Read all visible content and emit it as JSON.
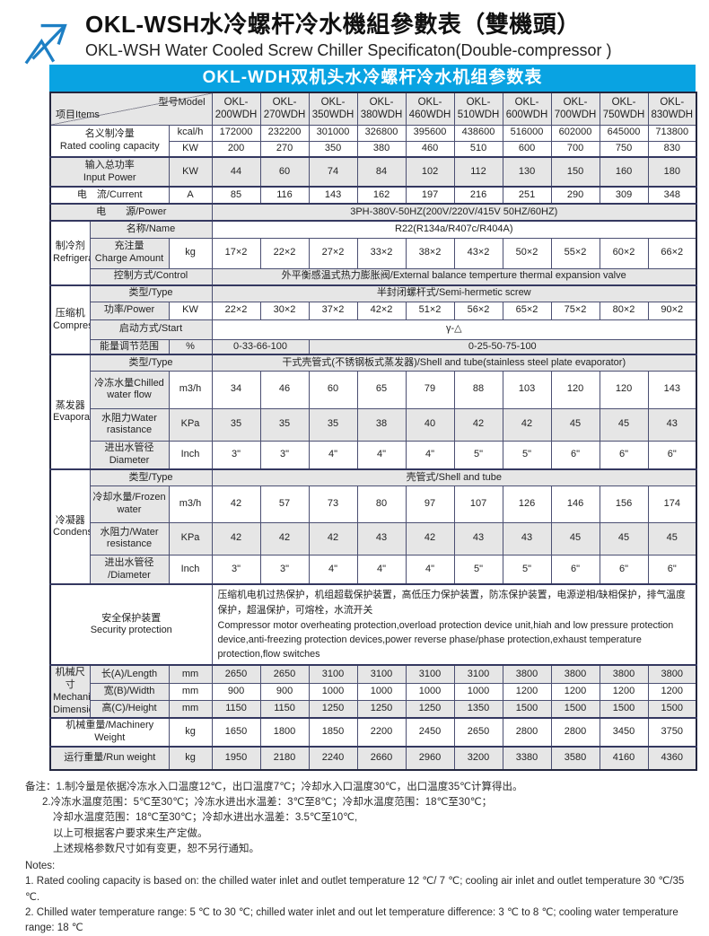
{
  "header": {
    "title_cn": "OKL-WSH水冷螺杆冷水機組參數表（雙機頭）",
    "title_en": "OKL-WSH Water Cooled Screw Chiller Specificaton(Double-compressor )"
  },
  "banner": {
    "text": "OKL-WDH双机头水冷螺杆冷水机组参数表",
    "bg_color": "#09a3e2"
  },
  "table": {
    "corner": {
      "items": "项目Items",
      "model": "型号Model"
    },
    "models": [
      "OKL-\n200WDH",
      "OKL-\n270WDH",
      "OKL-\n350WDH",
      "OKL-\n380WDH",
      "OKL-\n460WDH",
      "OKL-\n510WDH",
      "OKL-\n600WDH",
      "OKL-\n700WDH",
      "OKL-\n750WDH",
      "OKL-\n830WDH"
    ],
    "rows": {
      "cooling": {
        "label": "名义制冷量\nRated cooling capacity",
        "kcal": {
          "unit": "kcal/h",
          "values": [
            "172000",
            "232200",
            "301000",
            "326800",
            "395600",
            "438600",
            "516000",
            "602000",
            "645000",
            "713800"
          ]
        },
        "kw": {
          "unit": "KW",
          "values": [
            "200",
            "270",
            "350",
            "380",
            "460",
            "510",
            "600",
            "700",
            "750",
            "830"
          ]
        }
      },
      "input_power": {
        "label": "输入总功率\nInput Power",
        "unit": "KW",
        "values": [
          "44",
          "60",
          "74",
          "84",
          "102",
          "112",
          "130",
          "150",
          "160",
          "180"
        ]
      },
      "current": {
        "label": "电　流/Current",
        "unit": "A",
        "values": [
          "85",
          "116",
          "143",
          "162",
          "197",
          "216",
          "251",
          "290",
          "309",
          "348"
        ]
      },
      "power": {
        "label": "电　　源/Power",
        "value": "3PH-380V-50HZ(200V/220V/415V  50HZ/60HZ)"
      },
      "refrigerant": {
        "section": "制冷剂\nRefrigerant",
        "name": {
          "label": "名称/Name",
          "value": "R22(R134a/R407c/R404A)"
        },
        "charge": {
          "label": "充注量\nCharge Amount",
          "unit": "kg",
          "values": [
            "17×2",
            "22×2",
            "27×2",
            "33×2",
            "38×2",
            "43×2",
            "50×2",
            "55×2",
            "60×2",
            "66×2"
          ]
        },
        "control": {
          "label": "控制方式/Control",
          "value": "外平衡感温式热力膨胀阀/External balance temperture thermal expansion valve"
        }
      },
      "compressor": {
        "section": "压缩机\nCompressor",
        "type": {
          "label": "类型/Type",
          "value": "半封闭螺杆式/Semi-hermetic screw"
        },
        "power": {
          "label": "功率/Power",
          "unit": "KW",
          "values": [
            "22×2",
            "30×2",
            "37×2",
            "42×2",
            "51×2",
            "56×2",
            "65×2",
            "75×2",
            "80×2",
            "90×2"
          ]
        },
        "start": {
          "label": "启动方式/Start",
          "value": "γ-△"
        },
        "energy": {
          "label": "能量调节范围",
          "unit": "%",
          "value_a": "0-33-66-100",
          "value_b": "0-25-50-75-100"
        }
      },
      "evaporator": {
        "section": "蒸发器\nEvaporator",
        "type": {
          "label": "类型/Type",
          "value": "干式壳管式(不锈钢板式蒸发器)/Shell and tube(stainless steel plate evaporator)"
        },
        "flow": {
          "label": "冷冻水量Chilled\nwater flow",
          "unit": "m3/h",
          "values": [
            "34",
            "46",
            "60",
            "65",
            "79",
            "88",
            "103",
            "120",
            "120",
            "143"
          ]
        },
        "resistance": {
          "label": "水阻力Water\nrasistance",
          "unit": "KPa",
          "values": [
            "35",
            "35",
            "35",
            "38",
            "40",
            "42",
            "42",
            "45",
            "45",
            "43"
          ]
        },
        "diameter": {
          "label": "进出水管径\nDiameter",
          "unit": "Inch",
          "values": [
            "3\"",
            "3\"",
            "4\"",
            "4\"",
            "4\"",
            "5\"",
            "5\"",
            "6\"",
            "6\"",
            "6\""
          ]
        }
      },
      "condenser": {
        "section": "冷凝器\nCondenser",
        "type": {
          "label": "类型/Type",
          "value": "壳管式/Shell and tube"
        },
        "flow": {
          "label": "冷却水量/Frozen\nwater",
          "unit": "m3/h",
          "values": [
            "42",
            "57",
            "73",
            "80",
            "97",
            "107",
            "126",
            "146",
            "156",
            "174"
          ]
        },
        "resistance": {
          "label": "水阻力/Water\nresistance",
          "unit": "KPa",
          "values": [
            "42",
            "42",
            "42",
            "43",
            "42",
            "43",
            "43",
            "45",
            "45",
            "45"
          ]
        },
        "diameter": {
          "label": "进出水管径\n/Diameter",
          "unit": "Inch",
          "values": [
            "3\"",
            "3\"",
            "4\"",
            "4\"",
            "4\"",
            "5\"",
            "5\"",
            "6\"",
            "6\"",
            "6\""
          ]
        }
      },
      "security": {
        "label": "安全保护装置\nSecurity protection",
        "value_cn": "压缩机电机过热保护，机组超载保护装置，高低压力保护装置，防冻保护装置，电源逆相/缺相保护，排气温度保护，超温保护，可熔栓，水流开关",
        "value_en": "Compressor motor overheating protection,overload protection device unit,hiah and low pressure protection device,anti-freezing protection devices,power reverse phase/phase protection,exhaust temperature protection,flow switches"
      },
      "dimensions": {
        "section": "机械尺寸\nMechanical\nDimensions",
        "length": {
          "label": "长(A)/Length",
          "unit": "mm",
          "values": [
            "2650",
            "2650",
            "3100",
            "3100",
            "3100",
            "3100",
            "3800",
            "3800",
            "3800",
            "3800"
          ]
        },
        "width": {
          "label": "宽(B)/Width",
          "unit": "mm",
          "values": [
            "900",
            "900",
            "1000",
            "1000",
            "1000",
            "1000",
            "1200",
            "1200",
            "1200",
            "1200"
          ]
        },
        "height": {
          "label": "高(C)/Height",
          "unit": "mm",
          "values": [
            "1150",
            "1150",
            "1250",
            "1250",
            "1250",
            "1350",
            "1500",
            "1500",
            "1500",
            "1500"
          ]
        }
      },
      "machinery_weight": {
        "label": "机械重量/Machinery Weight",
        "unit": "kg",
        "values": [
          "1650",
          "1800",
          "1850",
          "2200",
          "2450",
          "2650",
          "2800",
          "2800",
          "3450",
          "3750"
        ]
      },
      "run_weight": {
        "label": "运行重量/Run weight",
        "unit": "kg",
        "values": [
          "1950",
          "2180",
          "2240",
          "2660",
          "2960",
          "3200",
          "3380",
          "3580",
          "4160",
          "4360"
        ]
      }
    }
  },
  "notes": {
    "cn1": "备注：1.制冷量是依据冷冻水入口温度12℃，出口温度7℃；冷却水入口温度30℃，出口温度35℃计算得出。",
    "cn2": "2.冷冻水温度范围：5℃至30℃；冷冻水进出水温差：3℃至8℃；冷却水温度范围：18℃至30℃；",
    "cn3": "冷却水温度范围：18℃至30℃；冷却水进出水温差：3.5℃至10℃,",
    "cn4": "以上可根据客户要求来生产定做。",
    "cn5": "上述规格参数尺寸如有变更，恕不另行通知。",
    "en_title": "Notes:",
    "en1": "1. Rated cooling capacity is based on: the chilled water inlet and outlet temperature 12 ℃/ 7 ℃; cooling air inlet and outlet temperature 30 ℃/35 ℃.",
    "en2": "2. Chilled water temperature range: 5 ℃ to 30 ℃; chilled water inlet and out let temperature difference: 3 ℃ to 8 ℃; cooling water temperature range: 18 ℃"
  }
}
